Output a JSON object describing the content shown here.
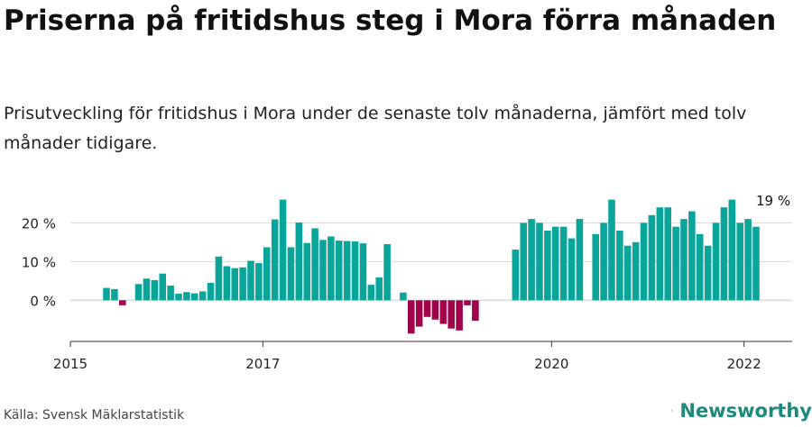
{
  "header": {
    "title": "Priserna på fritidshus steg i Mora förra månaden",
    "subtitle": "Prisutveckling för fritidshus i Mora under de senaste tolv månaderna, jämfört med tolv månader tidigare."
  },
  "footer": {
    "source": "Källa: Svensk Mäklarstatistik",
    "brand": "Newsworthy"
  },
  "colors": {
    "positive": "#0aa59a",
    "negative": "#a1024a",
    "grid": "#d9d9d9",
    "axis": "#333333",
    "brand": "#1d8a7a"
  },
  "icons": [
    "newsworthy-logo-icon"
  ],
  "chart_data": {
    "type": "bar",
    "ylabel": "",
    "ylim": [
      -9,
      28
    ],
    "yticks": [
      0,
      10,
      20
    ],
    "ytick_labels": [
      "0 %",
      "10 %",
      "20 %"
    ],
    "xlim": [
      "2015-01",
      "2022-07"
    ],
    "xticks": [
      {
        "x": "2015-01",
        "label": "2015"
      },
      {
        "x": "2017-01",
        "label": "2017"
      },
      {
        "x": "2020-01",
        "label": "2020"
      },
      {
        "x": "2022-01",
        "label": "2022"
      }
    ],
    "annotation": {
      "text": "19 %",
      "x": "2022-01"
    },
    "grid": true,
    "legend": "none",
    "series": [
      {
        "values": [
          {
            "x": "2015-05",
            "y": 3.2
          },
          {
            "x": "2015-06",
            "y": 2.9
          },
          {
            "x": "2015-07",
            "y": -1.3
          },
          {
            "x": "2015-09",
            "y": 4.2
          },
          {
            "x": "2015-10",
            "y": 5.6
          },
          {
            "x": "2015-11",
            "y": 5.2
          },
          {
            "x": "2015-12",
            "y": 6.9
          },
          {
            "x": "2016-01",
            "y": 3.8
          },
          {
            "x": "2016-02",
            "y": 1.7
          },
          {
            "x": "2016-03",
            "y": 2.1
          },
          {
            "x": "2016-04",
            "y": 1.8
          },
          {
            "x": "2016-05",
            "y": 2.3
          },
          {
            "x": "2016-06",
            "y": 4.5
          },
          {
            "x": "2016-07",
            "y": 11.3
          },
          {
            "x": "2016-08",
            "y": 8.8
          },
          {
            "x": "2016-09",
            "y": 8.3
          },
          {
            "x": "2016-10",
            "y": 8.5
          },
          {
            "x": "2016-11",
            "y": 10.2
          },
          {
            "x": "2016-12",
            "y": 9.6
          },
          {
            "x": "2017-01",
            "y": 13.7
          },
          {
            "x": "2017-02",
            "y": 20.9
          },
          {
            "x": "2017-03",
            "y": 26.0
          },
          {
            "x": "2017-04",
            "y": 13.7
          },
          {
            "x": "2017-05",
            "y": 20.1
          },
          {
            "x": "2017-06",
            "y": 14.8
          },
          {
            "x": "2017-07",
            "y": 18.6
          },
          {
            "x": "2017-08",
            "y": 15.6
          },
          {
            "x": "2017-09",
            "y": 16.5
          },
          {
            "x": "2017-10",
            "y": 15.4
          },
          {
            "x": "2017-11",
            "y": 15.3
          },
          {
            "x": "2017-12",
            "y": 15.2
          },
          {
            "x": "2018-01",
            "y": 14.7
          },
          {
            "x": "2018-02",
            "y": 4.0
          },
          {
            "x": "2018-03",
            "y": 5.9
          },
          {
            "x": "2018-04",
            "y": 14.5
          },
          {
            "x": "2018-06",
            "y": 2.0
          },
          {
            "x": "2018-07",
            "y": -8.6
          },
          {
            "x": "2018-08",
            "y": -6.8
          },
          {
            "x": "2018-09",
            "y": -4.3
          },
          {
            "x": "2018-10",
            "y": -5.0
          },
          {
            "x": "2018-11",
            "y": -6.1
          },
          {
            "x": "2018-12",
            "y": -7.3
          },
          {
            "x": "2019-01",
            "y": -7.8
          },
          {
            "x": "2019-02",
            "y": -1.3
          },
          {
            "x": "2019-03",
            "y": -5.3
          },
          {
            "x": "2019-08",
            "y": 13.1
          },
          {
            "x": "2019-09",
            "y": 20.0
          },
          {
            "x": "2019-10",
            "y": 21.0
          },
          {
            "x": "2019-11",
            "y": 20.0
          },
          {
            "x": "2019-12",
            "y": 18.0
          },
          {
            "x": "2020-01",
            "y": 19.0
          },
          {
            "x": "2020-02",
            "y": 19.0
          },
          {
            "x": "2020-03",
            "y": 16.0
          },
          {
            "x": "2020-04",
            "y": 21.0
          },
          {
            "x": "2020-06",
            "y": 17.1
          },
          {
            "x": "2020-07",
            "y": 20.0
          },
          {
            "x": "2020-08",
            "y": 26.0
          },
          {
            "x": "2020-09",
            "y": 18.0
          },
          {
            "x": "2020-10",
            "y": 14.1
          },
          {
            "x": "2020-11",
            "y": 15.0
          },
          {
            "x": "2020-12",
            "y": 20.0
          },
          {
            "x": "2021-01",
            "y": 22.0
          },
          {
            "x": "2021-02",
            "y": 24.0
          },
          {
            "x": "2021-03",
            "y": 24.0
          },
          {
            "x": "2021-04",
            "y": 19.0
          },
          {
            "x": "2021-05",
            "y": 21.0
          },
          {
            "x": "2021-06",
            "y": 23.0
          },
          {
            "x": "2021-07",
            "y": 17.1
          },
          {
            "x": "2021-08",
            "y": 14.1
          },
          {
            "x": "2021-09",
            "y": 20.0
          },
          {
            "x": "2021-10",
            "y": 24.0
          },
          {
            "x": "2021-11",
            "y": 26.0
          },
          {
            "x": "2021-12",
            "y": 20.0
          },
          {
            "x": "2022-01",
            "y": 21.0
          },
          {
            "x": "2022-02",
            "y": 19.0
          }
        ]
      }
    ]
  }
}
